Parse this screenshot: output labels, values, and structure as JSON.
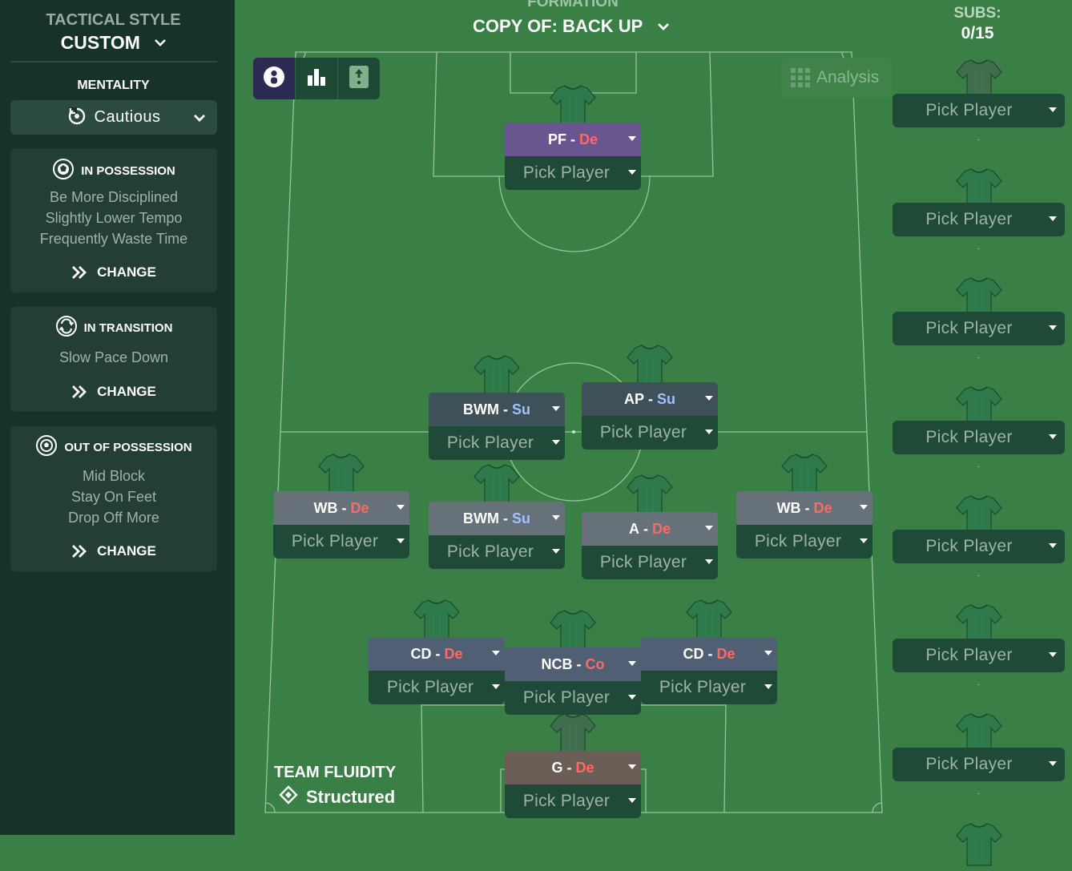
{
  "tactics": {
    "style_label": "TACTICAL STYLE",
    "style_value": "CUSTOM",
    "mentality_label": "MENTALITY",
    "mentality_value": "Cautious",
    "in_possession": {
      "title": "IN POSSESSION",
      "lines": [
        "Be More Disciplined",
        "Slightly Lower Tempo",
        "Frequently Waste Time"
      ],
      "change": "CHANGE"
    },
    "in_transition": {
      "title": "IN TRANSITION",
      "lines": [
        "Slow Pace Down"
      ],
      "change": "CHANGE"
    },
    "out_of_possession": {
      "title": "OUT OF POSSESSION",
      "lines": [
        "Mid Block",
        "Stay On Feet",
        "Drop Off More"
      ],
      "change": "CHANGE"
    }
  },
  "formation": {
    "label": "FORMATION",
    "name": "COPY OF: BACK UP"
  },
  "analysis_label": "Analysis",
  "pick_label": "Pick Player",
  "players": [
    {
      "role": "PF",
      "duty": "De",
      "duty_class": "de",
      "color": "#6a568f"
    },
    {
      "role": "BWM",
      "duty": "Su",
      "duty_class": "su",
      "color": "#3f5158"
    },
    {
      "role": "AP",
      "duty": "Su",
      "duty_class": "su",
      "color": "#3f5158"
    },
    {
      "role": "WB",
      "duty": "De",
      "duty_class": "de",
      "color": "#67717a"
    },
    {
      "role": "BWM",
      "duty": "Su",
      "duty_class": "su",
      "color": "#67717a"
    },
    {
      "role": "A",
      "duty": "De",
      "duty_class": "de",
      "color": "#67717a"
    },
    {
      "role": "WB",
      "duty": "De",
      "duty_class": "de",
      "color": "#67717a"
    },
    {
      "role": "CD",
      "duty": "De",
      "duty_class": "de",
      "color": "#505f74"
    },
    {
      "role": "NCB",
      "duty": "Co",
      "duty_class": "co",
      "color": "#505f74"
    },
    {
      "role": "CD",
      "duty": "De",
      "duty_class": "de",
      "color": "#505f74"
    },
    {
      "role": "G",
      "duty": "De",
      "duty_class": "de",
      "color": "#6a5e56"
    }
  ],
  "fluidity": {
    "label": "TEAM FLUIDITY",
    "value": "Structured"
  },
  "subs": {
    "label": "SUBS:",
    "count": "0/15",
    "dash": "-"
  },
  "colors": {
    "pitch": "#3a7f45",
    "panel": "#173227",
    "defend": "#ff6a66",
    "support": "#9fc2ff"
  }
}
